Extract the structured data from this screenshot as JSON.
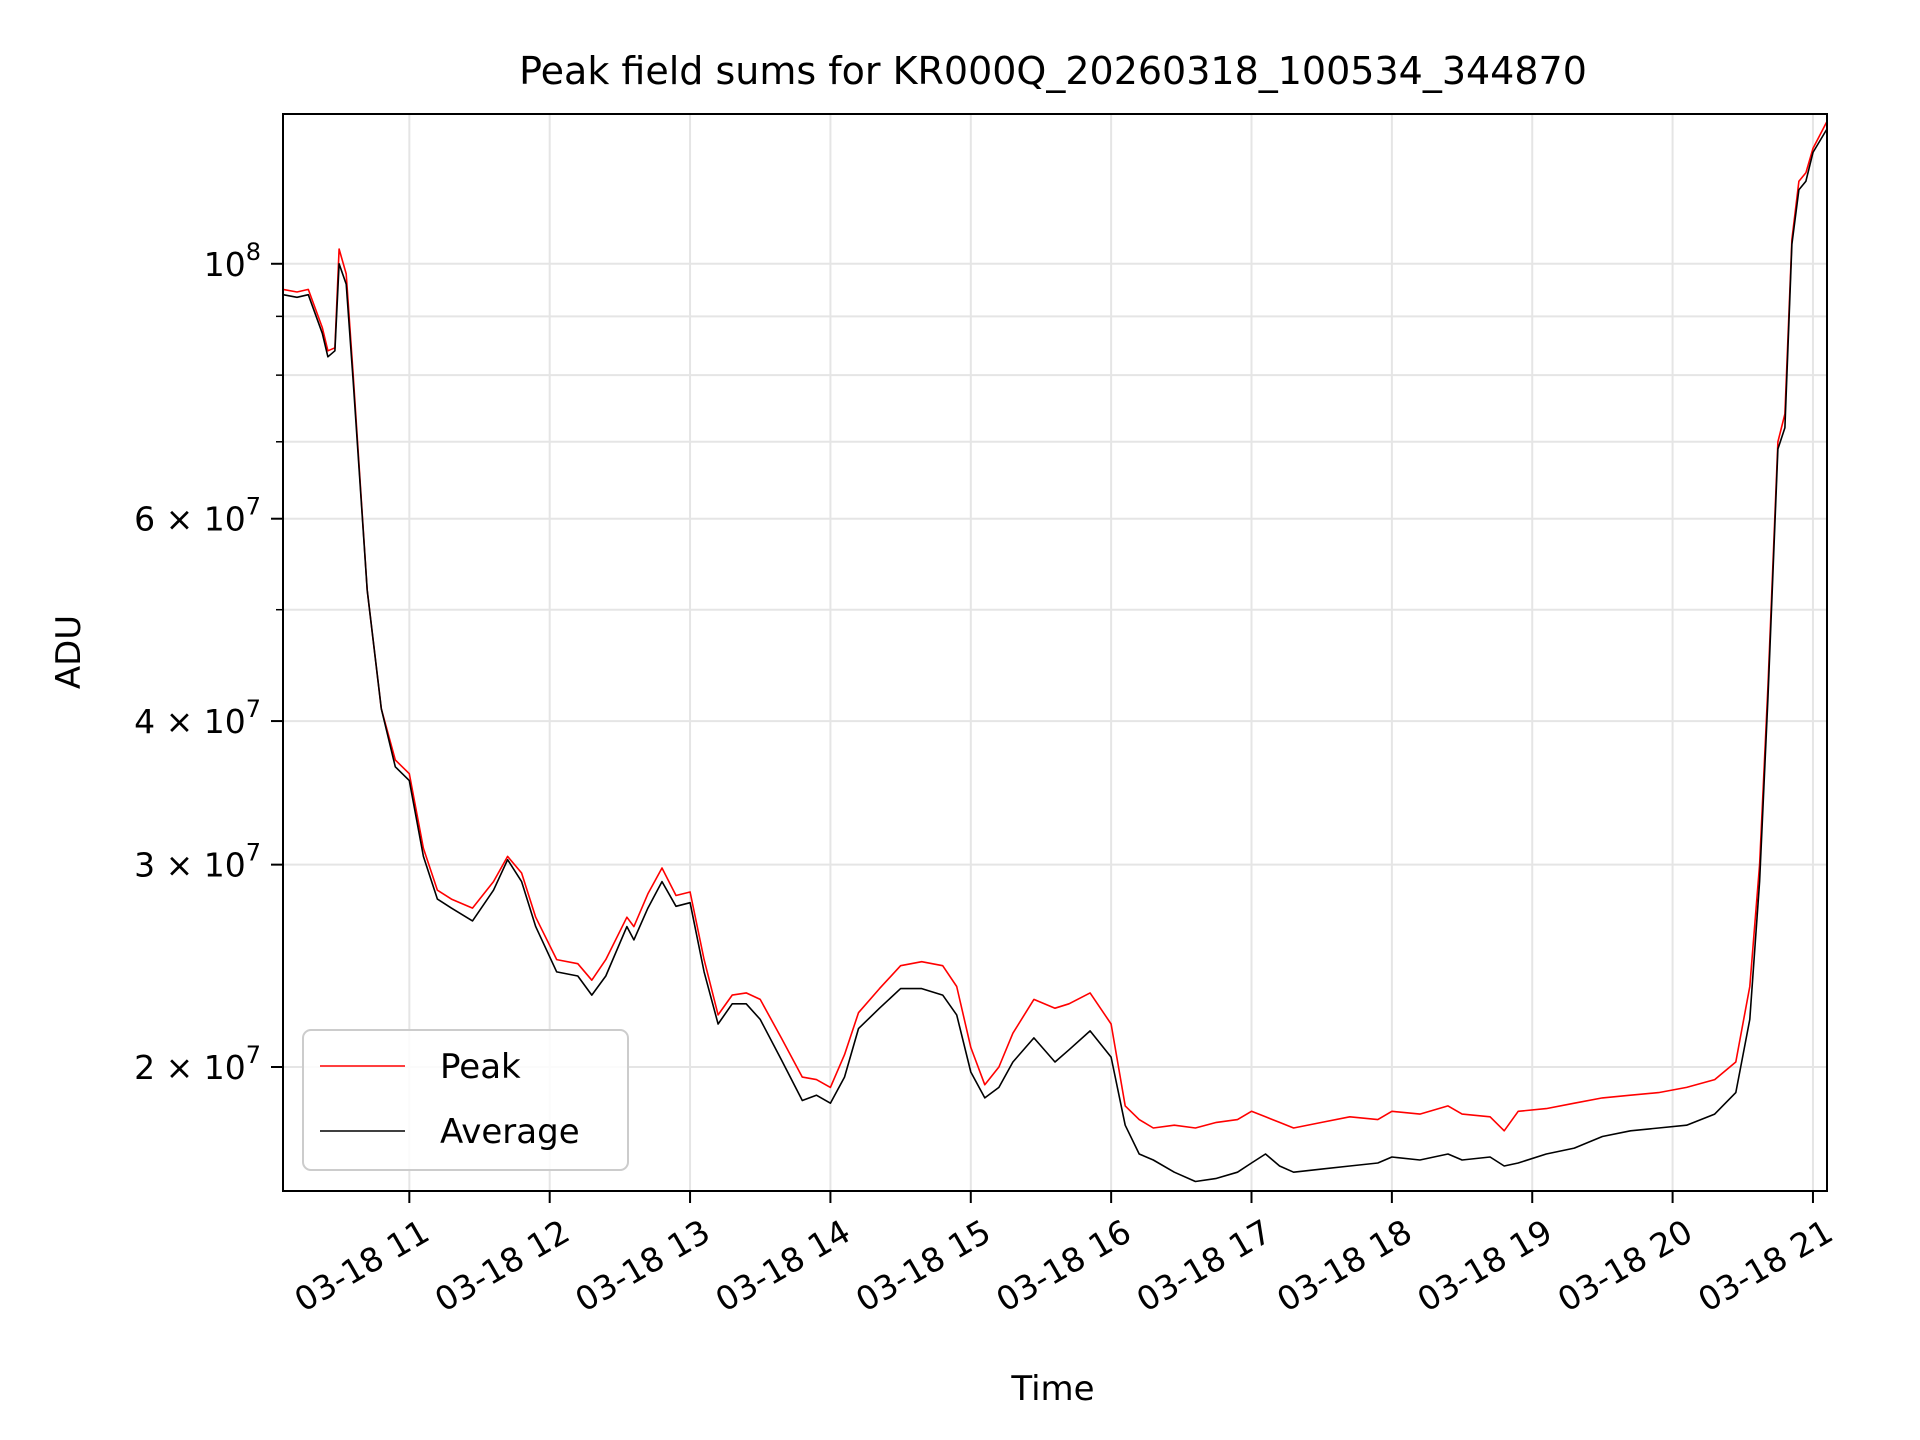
{
  "chart_data": {
    "type": "line",
    "title": "Peak field sums for KR000Q_20260318_100534_344870",
    "xlabel": "Time",
    "ylabel": "ADU",
    "yscale": "log",
    "ylim": [
      15600000,
      135000000
    ],
    "xlim_hours": [
      10.1,
      21.1
    ],
    "grid": true,
    "legend_position": "lower-left",
    "x_ticks": [
      {
        "hour": 11,
        "label": "03-18 11"
      },
      {
        "hour": 12,
        "label": "03-18 12"
      },
      {
        "hour": 13,
        "label": "03-18 13"
      },
      {
        "hour": 14,
        "label": "03-18 14"
      },
      {
        "hour": 15,
        "label": "03-18 15"
      },
      {
        "hour": 16,
        "label": "03-18 16"
      },
      {
        "hour": 17,
        "label": "03-18 17"
      },
      {
        "hour": 18,
        "label": "03-18 18"
      },
      {
        "hour": 19,
        "label": "03-18 19"
      },
      {
        "hour": 20,
        "label": "03-18 20"
      },
      {
        "hour": 21,
        "label": "03-18 21"
      }
    ],
    "y_ticks": [
      {
        "value": 100000000,
        "mantissa": "",
        "exponent": "8"
      },
      {
        "value": 60000000,
        "mantissa": "6",
        "exponent": "7"
      },
      {
        "value": 40000000,
        "mantissa": "4",
        "exponent": "7"
      },
      {
        "value": 30000000,
        "mantissa": "3",
        "exponent": "7"
      },
      {
        "value": 20000000,
        "mantissa": "2",
        "exponent": "7"
      }
    ],
    "y_minor_ticks": [
      90000000,
      80000000,
      70000000,
      50000000
    ],
    "series": [
      {
        "name": "Peak",
        "color": "#ff0000",
        "x": [
          10.1,
          10.2,
          10.28,
          10.38,
          10.42,
          10.47,
          10.5,
          10.55,
          10.6,
          10.7,
          10.8,
          10.9,
          11.0,
          11.1,
          11.2,
          11.3,
          11.45,
          11.6,
          11.7,
          11.8,
          11.9,
          12.05,
          12.2,
          12.3,
          12.4,
          12.55,
          12.6,
          12.7,
          12.8,
          12.9,
          13.0,
          13.1,
          13.2,
          13.3,
          13.4,
          13.5,
          13.65,
          13.8,
          13.9,
          14.0,
          14.1,
          14.2,
          14.35,
          14.5,
          14.65,
          14.8,
          14.9,
          15.0,
          15.1,
          15.2,
          15.3,
          15.45,
          15.6,
          15.7,
          15.85,
          16.0,
          16.1,
          16.2,
          16.3,
          16.45,
          16.6,
          16.75,
          16.9,
          17.0,
          17.1,
          17.2,
          17.3,
          17.5,
          17.7,
          17.9,
          18.0,
          18.2,
          18.4,
          18.5,
          18.7,
          18.8,
          18.9,
          19.1,
          19.3,
          19.5,
          19.7,
          19.9,
          20.1,
          20.3,
          20.45,
          20.55,
          20.62,
          20.68,
          20.75,
          20.8,
          20.85,
          20.9,
          20.95,
          21.0,
          21.1
        ],
        "values": [
          95000000,
          94500000,
          95000000,
          88000000,
          84000000,
          84500000,
          103000000,
          98000000,
          80000000,
          52000000,
          41000000,
          37000000,
          36000000,
          31000000,
          28500000,
          28000000,
          27500000,
          29000000,
          30500000,
          29500000,
          27000000,
          24800000,
          24600000,
          23800000,
          24800000,
          27000000,
          26500000,
          28300000,
          29800000,
          28200000,
          28400000,
          24800000,
          22200000,
          23100000,
          23200000,
          22900000,
          21200000,
          19600000,
          19500000,
          19200000,
          20500000,
          22300000,
          23400000,
          24500000,
          24700000,
          24500000,
          23500000,
          20800000,
          19300000,
          20000000,
          21400000,
          22900000,
          22500000,
          22700000,
          23200000,
          21800000,
          18500000,
          18000000,
          17700000,
          17800000,
          17700000,
          17900000,
          18000000,
          18300000,
          18100000,
          17900000,
          17700000,
          17900000,
          18100000,
          18000000,
          18300000,
          18200000,
          18500000,
          18200000,
          18100000,
          17600000,
          18300000,
          18400000,
          18600000,
          18800000,
          18900000,
          19000000,
          19200000,
          19500000,
          20200000,
          23500000,
          30000000,
          43000000,
          70000000,
          74000000,
          105000000,
          118000000,
          120000000,
          126000000,
          133000000
        ]
      },
      {
        "name": "Average",
        "color": "#000000",
        "x": [
          10.1,
          10.2,
          10.28,
          10.38,
          10.42,
          10.47,
          10.5,
          10.55,
          10.6,
          10.7,
          10.8,
          10.9,
          11.0,
          11.1,
          11.2,
          11.3,
          11.45,
          11.6,
          11.7,
          11.8,
          11.9,
          12.05,
          12.2,
          12.3,
          12.4,
          12.55,
          12.6,
          12.7,
          12.8,
          12.9,
          13.0,
          13.1,
          13.2,
          13.3,
          13.4,
          13.5,
          13.65,
          13.8,
          13.9,
          14.0,
          14.1,
          14.2,
          14.35,
          14.5,
          14.65,
          14.8,
          14.9,
          15.0,
          15.1,
          15.2,
          15.3,
          15.45,
          15.6,
          15.7,
          15.85,
          16.0,
          16.1,
          16.2,
          16.3,
          16.45,
          16.6,
          16.75,
          16.9,
          17.0,
          17.1,
          17.2,
          17.3,
          17.5,
          17.7,
          17.9,
          18.0,
          18.2,
          18.4,
          18.5,
          18.7,
          18.8,
          18.9,
          19.1,
          19.3,
          19.5,
          19.7,
          19.9,
          20.1,
          20.3,
          20.45,
          20.55,
          20.62,
          20.68,
          20.75,
          20.8,
          20.85,
          20.9,
          20.95,
          21.0,
          21.1
        ],
        "values": [
          94000000,
          93500000,
          94000000,
          87000000,
          83000000,
          84000000,
          100000000,
          96000000,
          79000000,
          52000000,
          41000000,
          36500000,
          35500000,
          30500000,
          28000000,
          27500000,
          26800000,
          28500000,
          30300000,
          29000000,
          26500000,
          24200000,
          24000000,
          23100000,
          24000000,
          26500000,
          25800000,
          27500000,
          29000000,
          27600000,
          27800000,
          24200000,
          21800000,
          22700000,
          22700000,
          22000000,
          20300000,
          18700000,
          18900000,
          18600000,
          19600000,
          21600000,
          22500000,
          23400000,
          23400000,
          23100000,
          22200000,
          19800000,
          18800000,
          19200000,
          20200000,
          21200000,
          20200000,
          20700000,
          21500000,
          20400000,
          17800000,
          16800000,
          16600000,
          16200000,
          15900000,
          16000000,
          16200000,
          16500000,
          16800000,
          16400000,
          16200000,
          16300000,
          16400000,
          16500000,
          16700000,
          16600000,
          16800000,
          16600000,
          16700000,
          16400000,
          16500000,
          16800000,
          17000000,
          17400000,
          17600000,
          17700000,
          17800000,
          18200000,
          19000000,
          22000000,
          29000000,
          42000000,
          69000000,
          72000000,
          104000000,
          116000000,
          118000000,
          125000000,
          131000000
        ]
      }
    ]
  }
}
